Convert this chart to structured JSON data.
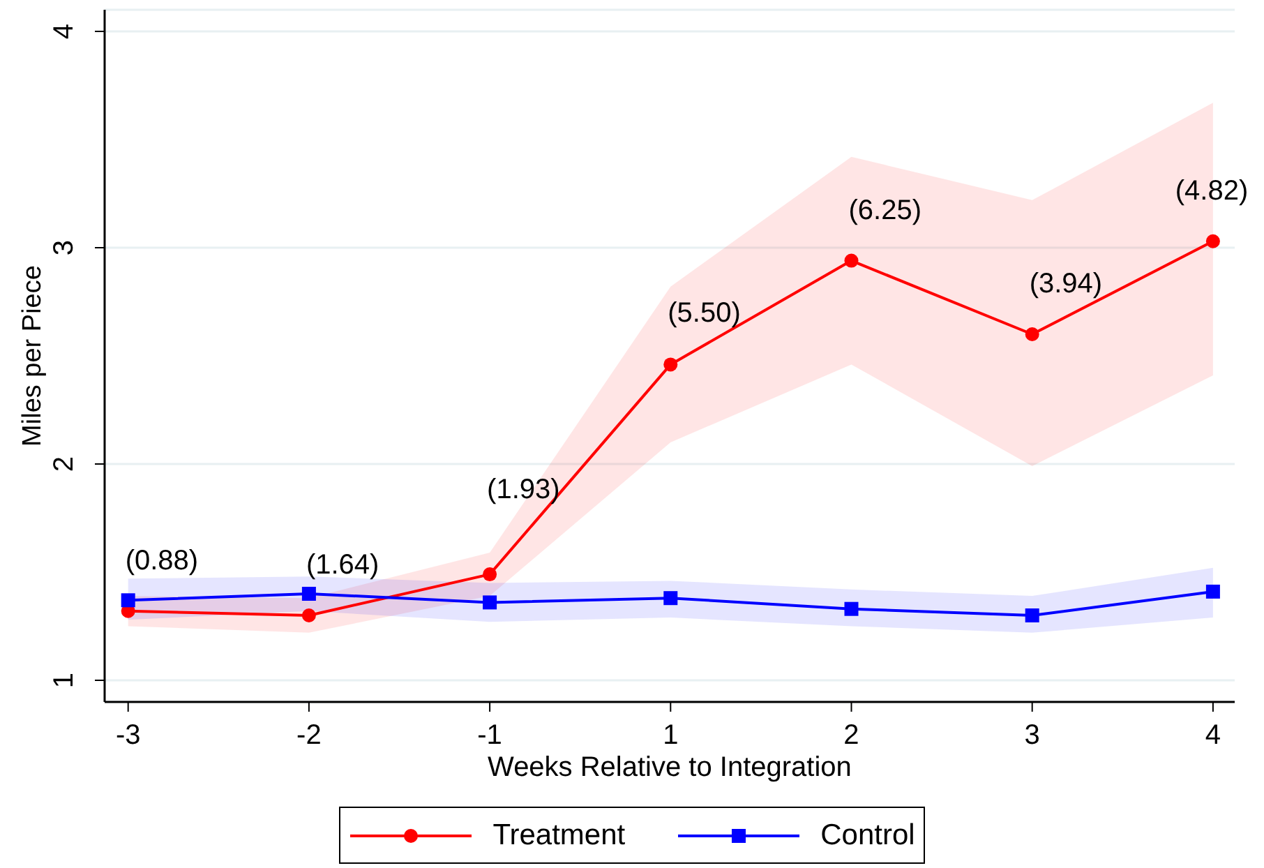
{
  "chart_data": {
    "type": "line",
    "xlabel": "Weeks Relative to Integration",
    "ylabel": "Miles per Piece",
    "categories": [
      "-3",
      "-2",
      "-1",
      "1",
      "2",
      "3",
      "4"
    ],
    "series": [
      {
        "name": "Treatment",
        "color": "#ff0000",
        "marker": "circle",
        "values": [
          1.32,
          1.3,
          1.49,
          2.46,
          2.94,
          2.6,
          3.03
        ],
        "lower": [
          1.25,
          1.22,
          1.39,
          2.1,
          2.46,
          1.99,
          2.41
        ],
        "upper": [
          1.39,
          1.38,
          1.59,
          2.82,
          3.42,
          3.22,
          3.67
        ]
      },
      {
        "name": "Control",
        "color": "#0000ff",
        "marker": "square",
        "values": [
          1.37,
          1.4,
          1.36,
          1.38,
          1.33,
          1.3,
          1.41
        ],
        "lower": [
          1.28,
          1.32,
          1.27,
          1.29,
          1.25,
          1.22,
          1.29
        ],
        "upper": [
          1.47,
          1.48,
          1.45,
          1.46,
          1.42,
          1.39,
          1.52
        ]
      }
    ],
    "ylim": [
      0.9,
      4.1
    ],
    "yticks": [
      1,
      2,
      3,
      4
    ],
    "grid": "y",
    "legend": "bottom",
    "annotations": [
      {
        "text": "(0.88)",
        "x": "-3",
        "y": 1.32
      },
      {
        "text": "(1.64)",
        "x": "-2",
        "y": 1.3
      },
      {
        "text": "(1.93)",
        "x": "-1",
        "y": 1.49
      },
      {
        "text": "(5.50)",
        "x": "1",
        "y": 2.46
      },
      {
        "text": "(6.25)",
        "x": "2",
        "y": 2.94
      },
      {
        "text": "(3.94)",
        "x": "3",
        "y": 2.6
      },
      {
        "text": "(4.82)",
        "x": "4",
        "y": 3.03
      }
    ]
  }
}
